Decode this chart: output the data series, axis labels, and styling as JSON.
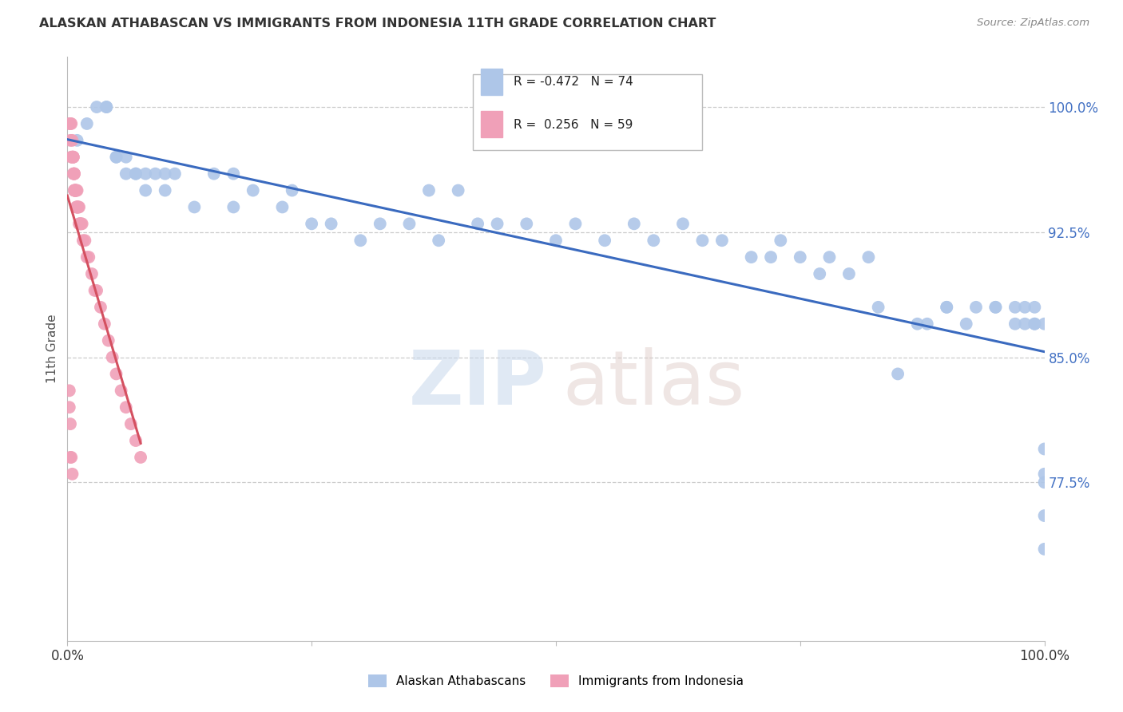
{
  "title": "ALASKAN ATHABASCAN VS IMMIGRANTS FROM INDONESIA 11TH GRADE CORRELATION CHART",
  "source": "Source: ZipAtlas.com",
  "ylabel": "11th Grade",
  "ytick_labels": [
    "100.0%",
    "92.5%",
    "85.0%",
    "77.5%"
  ],
  "ytick_values": [
    1.0,
    0.925,
    0.85,
    0.775
  ],
  "xmin": 0.0,
  "xmax": 1.0,
  "ymin": 0.68,
  "ymax": 1.03,
  "legend_r_blue": "-0.472",
  "legend_n_blue": "74",
  "legend_r_pink": "0.256",
  "legend_n_pink": "59",
  "blue_color": "#aec6e8",
  "pink_color": "#f0a0b8",
  "blue_line_color": "#3a6abf",
  "pink_line_color": "#d45060",
  "blue_scatter_x": [
    0.01,
    0.02,
    0.03,
    0.04,
    0.04,
    0.05,
    0.05,
    0.06,
    0.06,
    0.07,
    0.07,
    0.08,
    0.08,
    0.09,
    0.1,
    0.1,
    0.11,
    0.13,
    0.15,
    0.17,
    0.17,
    0.19,
    0.22,
    0.23,
    0.25,
    0.27,
    0.3,
    0.32,
    0.35,
    0.37,
    0.38,
    0.4,
    0.42,
    0.44,
    0.47,
    0.5,
    0.52,
    0.55,
    0.58,
    0.6,
    0.63,
    0.65,
    0.67,
    0.7,
    0.72,
    0.73,
    0.75,
    0.77,
    0.78,
    0.8,
    0.82,
    0.83,
    0.85,
    0.87,
    0.88,
    0.9,
    0.9,
    0.92,
    0.93,
    0.95,
    0.95,
    0.97,
    0.97,
    0.98,
    0.98,
    0.99,
    0.99,
    0.99,
    1.0,
    1.0,
    1.0,
    1.0,
    1.0,
    1.0
  ],
  "blue_scatter_y": [
    0.98,
    0.99,
    1.0,
    1.0,
    1.0,
    0.97,
    0.97,
    0.97,
    0.96,
    0.96,
    0.96,
    0.96,
    0.95,
    0.96,
    0.96,
    0.95,
    0.96,
    0.94,
    0.96,
    0.94,
    0.96,
    0.95,
    0.94,
    0.95,
    0.93,
    0.93,
    0.92,
    0.93,
    0.93,
    0.95,
    0.92,
    0.95,
    0.93,
    0.93,
    0.93,
    0.92,
    0.93,
    0.92,
    0.93,
    0.92,
    0.93,
    0.92,
    0.92,
    0.91,
    0.91,
    0.92,
    0.91,
    0.9,
    0.91,
    0.9,
    0.91,
    0.88,
    0.84,
    0.87,
    0.87,
    0.88,
    0.88,
    0.87,
    0.88,
    0.88,
    0.88,
    0.87,
    0.88,
    0.88,
    0.87,
    0.87,
    0.87,
    0.88,
    0.87,
    0.795,
    0.78,
    0.775,
    0.755,
    0.735
  ],
  "pink_scatter_x": [
    0.002,
    0.003,
    0.003,
    0.004,
    0.004,
    0.005,
    0.005,
    0.005,
    0.006,
    0.006,
    0.006,
    0.006,
    0.007,
    0.007,
    0.007,
    0.007,
    0.007,
    0.008,
    0.008,
    0.008,
    0.008,
    0.009,
    0.009,
    0.009,
    0.01,
    0.01,
    0.01,
    0.01,
    0.011,
    0.011,
    0.012,
    0.012,
    0.013,
    0.013,
    0.014,
    0.015,
    0.016,
    0.018,
    0.02,
    0.022,
    0.025,
    0.028,
    0.03,
    0.034,
    0.038,
    0.042,
    0.046,
    0.05,
    0.055,
    0.06,
    0.065,
    0.07,
    0.075,
    0.002,
    0.002,
    0.003,
    0.003,
    0.004,
    0.005
  ],
  "pink_scatter_y": [
    0.99,
    0.99,
    0.98,
    0.99,
    0.97,
    0.98,
    0.97,
    0.97,
    0.97,
    0.97,
    0.97,
    0.96,
    0.96,
    0.96,
    0.96,
    0.95,
    0.95,
    0.95,
    0.95,
    0.95,
    0.95,
    0.95,
    0.94,
    0.95,
    0.95,
    0.94,
    0.94,
    0.94,
    0.94,
    0.94,
    0.94,
    0.93,
    0.93,
    0.93,
    0.93,
    0.93,
    0.92,
    0.92,
    0.91,
    0.91,
    0.9,
    0.89,
    0.89,
    0.88,
    0.87,
    0.86,
    0.85,
    0.84,
    0.83,
    0.82,
    0.81,
    0.8,
    0.79,
    0.83,
    0.82,
    0.81,
    0.79,
    0.79,
    0.78
  ]
}
